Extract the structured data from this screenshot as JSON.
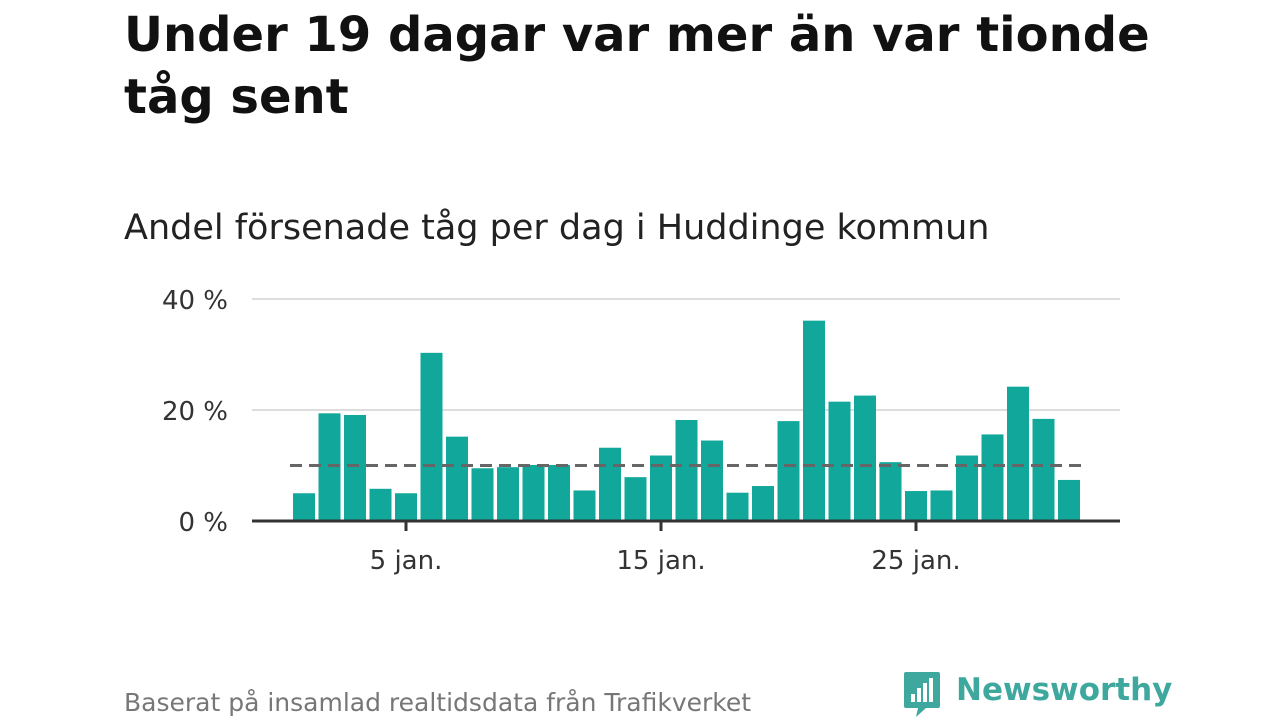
{
  "title": "Under 19 dagar var mer än var tionde tåg sent",
  "subtitle": "Andel försenade tåg per dag i Huddinge kommun",
  "source": "Baserat på insamlad realtidsdata från Trafikverket",
  "brand": {
    "name": "Newsworthy",
    "logo_icon": "bar-chart-speech-bubble-icon"
  },
  "colors": {
    "bar": "#11a89b",
    "average_line": "#666666",
    "grid": "#dddddd",
    "axis": "#333333",
    "brand": "#3fa89e"
  },
  "chart_data": {
    "type": "bar",
    "x": [
      1,
      2,
      3,
      4,
      5,
      6,
      7,
      8,
      9,
      10,
      11,
      12,
      13,
      14,
      15,
      16,
      17,
      18,
      19,
      20,
      21,
      22,
      23,
      24,
      25,
      26,
      27,
      28,
      29,
      30,
      31
    ],
    "values": [
      5,
      19.4,
      19.1,
      5.8,
      5,
      30.3,
      15.2,
      9.5,
      9.7,
      10.1,
      10.1,
      5.5,
      13.2,
      7.9,
      11.8,
      18.2,
      14.5,
      5.1,
      6.3,
      18,
      36.1,
      21.5,
      22.6,
      10.6,
      5.4,
      5.5,
      11.8,
      15.6,
      24.2,
      18.4,
      7.4
    ],
    "x_ticks": [
      5,
      15,
      25
    ],
    "x_tick_labels": [
      "5 jan.",
      "15 jan.",
      "25 jan."
    ],
    "y_ticks": [
      0,
      20,
      40
    ],
    "y_tick_labels": [
      "0 %",
      "20 %",
      "40 %"
    ],
    "ylim": [
      0,
      40
    ],
    "reference_line": {
      "value": 10,
      "style": "dashed"
    },
    "grid": true,
    "legend": "none",
    "xlabel": "",
    "ylabel": ""
  }
}
